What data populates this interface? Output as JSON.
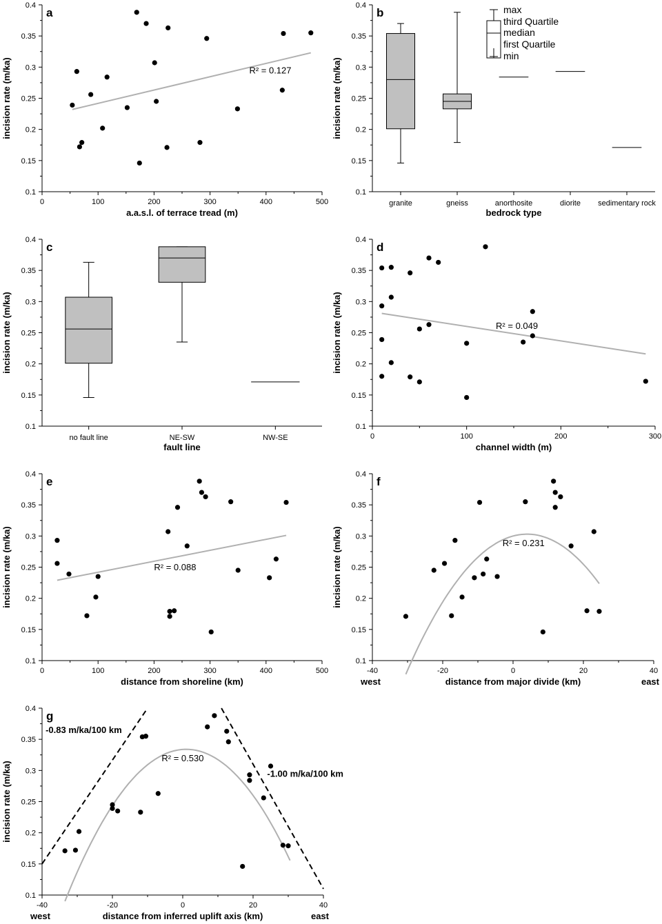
{
  "chart_data": [
    {
      "id": "a",
      "type": "scatter",
      "label": "a",
      "xlabel": "a.a.s.l. of terrace tread (m)",
      "ylabel": "incision rate (m/ka)",
      "xlim": [
        0,
        500
      ],
      "ylim": [
        0.1,
        0.4
      ],
      "xticks": [
        0,
        100,
        200,
        300,
        400,
        500
      ],
      "xtick_labels": [
        "0",
        "100",
        "200",
        "300",
        "400",
        "500"
      ],
      "yticks": [
        0.1,
        0.15,
        0.2,
        0.25,
        0.3,
        0.35,
        0.4
      ],
      "ytick_labels": [
        "0.1",
        "0.15",
        "0.2",
        "0.25",
        "0.3",
        "0.35",
        "0.4"
      ],
      "points": [
        [
          54,
          0.239
        ],
        [
          62,
          0.293
        ],
        [
          67,
          0.172
        ],
        [
          71,
          0.179
        ],
        [
          87,
          0.256
        ],
        [
          108,
          0.202
        ],
        [
          116,
          0.284
        ],
        [
          152,
          0.235
        ],
        [
          169,
          0.388
        ],
        [
          174,
          0.146
        ],
        [
          186,
          0.37
        ],
        [
          201,
          0.307
        ],
        [
          204,
          0.245
        ],
        [
          223,
          0.171
        ],
        [
          225,
          0.363
        ],
        [
          282,
          0.179
        ],
        [
          294,
          0.346
        ],
        [
          349,
          0.233
        ],
        [
          429,
          0.263
        ],
        [
          431,
          0.354
        ],
        [
          480,
          0.355
        ]
      ],
      "fit": {
        "kind": "linear",
        "x": [
          54,
          480
        ],
        "y": [
          0.232,
          0.323
        ]
      },
      "r2_text": "R² = 0.127",
      "r2_at": [
        370,
        0.29
      ]
    },
    {
      "id": "b",
      "type": "box",
      "label": "b",
      "xlabel": "bedrock type",
      "ylabel": "incision rate (m/ka)",
      "ylim": [
        0.1,
        0.4
      ],
      "yticks": [
        0.1,
        0.15,
        0.2,
        0.25,
        0.3,
        0.35,
        0.4
      ],
      "ytick_labels": [
        "0.1",
        "0.15",
        "0.2",
        "0.25",
        "0.3",
        "0.35",
        "0.4"
      ],
      "categories": [
        "granite",
        "gneiss",
        "anorthosite",
        "diorite",
        "sedimentary rock"
      ],
      "boxes": [
        {
          "min": 0.146,
          "q1": 0.201,
          "median": 0.28,
          "q3": 0.354,
          "max": 0.37
        },
        {
          "min": 0.179,
          "q1": 0.233,
          "median": 0.245,
          "q3": 0.257,
          "max": 0.388
        },
        {
          "single": 0.284
        },
        {
          "single": 0.293
        },
        {
          "single": 0.171
        }
      ],
      "legend": [
        "max",
        "third Quartile",
        "median",
        "first Quartile",
        "min"
      ]
    },
    {
      "id": "c",
      "type": "box",
      "label": "c",
      "xlabel": "fault line",
      "ylabel": "incision rate (m/ka)",
      "ylim": [
        0.1,
        0.4
      ],
      "yticks": [
        0.1,
        0.15,
        0.2,
        0.25,
        0.3,
        0.35,
        0.4
      ],
      "ytick_labels": [
        "0.1",
        "0.15",
        "0.2",
        "0.25",
        "0.3",
        "0.35",
        "0.4"
      ],
      "categories": [
        "no fault line",
        "NE-SW",
        "NW-SE"
      ],
      "boxes": [
        {
          "min": 0.146,
          "q1": 0.201,
          "median": 0.256,
          "q3": 0.307,
          "max": 0.363
        },
        {
          "min": 0.235,
          "q1": 0.331,
          "median": 0.37,
          "q3": 0.388,
          "max": 0.388
        },
        {
          "single": 0.171
        }
      ]
    },
    {
      "id": "d",
      "type": "scatter",
      "label": "d",
      "xlabel": "channel width (m)",
      "ylabel": "incision rate (m/ka)",
      "xlim": [
        0,
        300
      ],
      "ylim": [
        0.1,
        0.4
      ],
      "xticks": [
        0,
        100,
        200,
        300
      ],
      "xtick_labels": [
        "0",
        "100",
        "200",
        "300"
      ],
      "yticks": [
        0.1,
        0.15,
        0.2,
        0.25,
        0.3,
        0.35,
        0.4
      ],
      "ytick_labels": [
        "0.1",
        "0.15",
        "0.2",
        "0.25",
        "0.3",
        "0.35",
        "0.4"
      ],
      "points": [
        [
          10,
          0.354
        ],
        [
          10,
          0.293
        ],
        [
          10,
          0.239
        ],
        [
          10,
          0.18
        ],
        [
          20,
          0.355
        ],
        [
          20,
          0.307
        ],
        [
          20,
          0.202
        ],
        [
          40,
          0.346
        ],
        [
          40,
          0.179
        ],
        [
          50,
          0.256
        ],
        [
          50,
          0.171
        ],
        [
          60,
          0.37
        ],
        [
          60,
          0.263
        ],
        [
          70,
          0.363
        ],
        [
          100,
          0.233
        ],
        [
          100,
          0.146
        ],
        [
          120,
          0.388
        ],
        [
          160,
          0.235
        ],
        [
          170,
          0.284
        ],
        [
          170,
          0.245
        ],
        [
          290,
          0.172
        ]
      ],
      "fit": {
        "kind": "linear",
        "x": [
          10,
          290
        ],
        "y": [
          0.281,
          0.216
        ]
      },
      "r2_text": "R² = 0.049",
      "r2_at": [
        131,
        0.256
      ]
    },
    {
      "id": "e",
      "type": "scatter",
      "label": "e",
      "xlabel": "distance from shoreline (km)",
      "ylabel": "incision rate (m/ka)",
      "xlim": [
        0,
        500
      ],
      "ylim": [
        0.1,
        0.4
      ],
      "xticks": [
        0,
        100,
        200,
        300,
        400,
        500
      ],
      "xtick_labels": [
        "0",
        "100",
        "200",
        "300",
        "400",
        "500"
      ],
      "yticks": [
        0.1,
        0.15,
        0.2,
        0.25,
        0.3,
        0.35,
        0.4
      ],
      "ytick_labels": [
        "0.1",
        "0.15",
        "0.2",
        "0.25",
        "0.3",
        "0.35",
        "0.4"
      ],
      "points": [
        [
          27,
          0.293
        ],
        [
          27,
          0.256
        ],
        [
          48,
          0.239
        ],
        [
          80,
          0.172
        ],
        [
          96,
          0.202
        ],
        [
          100,
          0.235
        ],
        [
          225,
          0.307
        ],
        [
          228,
          0.179
        ],
        [
          228,
          0.171
        ],
        [
          236,
          0.18
        ],
        [
          242,
          0.346
        ],
        [
          259,
          0.284
        ],
        [
          281,
          0.388
        ],
        [
          285,
          0.37
        ],
        [
          292,
          0.363
        ],
        [
          302,
          0.146
        ],
        [
          337,
          0.355
        ],
        [
          350,
          0.245
        ],
        [
          406,
          0.233
        ],
        [
          418,
          0.263
        ],
        [
          436,
          0.354
        ]
      ],
      "fit": {
        "kind": "linear",
        "x": [
          27,
          436
        ],
        "y": [
          0.229,
          0.301
        ]
      },
      "r2_text": "R² = 0.088",
      "r2_at": [
        200,
        0.245
      ]
    },
    {
      "id": "f",
      "type": "scatter",
      "label": "f",
      "xlabel": "distance from major divide (km)",
      "ylabel": "incision rate (m/ka)",
      "xlim": [
        -40,
        40
      ],
      "ylim": [
        0.1,
        0.4
      ],
      "xticks": [
        -40,
        -20,
        0,
        20,
        40
      ],
      "xtick_labels": [
        "-40",
        "-20",
        "0",
        "20",
        "40"
      ],
      "yticks": [
        0.1,
        0.15,
        0.2,
        0.25,
        0.3,
        0.35,
        0.4
      ],
      "ytick_labels": [
        "0.1",
        "0.15",
        "0.2",
        "0.25",
        "0.3",
        "0.35",
        "0.4"
      ],
      "side_left": "west",
      "side_right": "east",
      "points": [
        [
          -30.5,
          0.171
        ],
        [
          -22.5,
          0.245
        ],
        [
          -19.5,
          0.256
        ],
        [
          -17.5,
          0.172
        ],
        [
          -16.5,
          0.293
        ],
        [
          -14.5,
          0.202
        ],
        [
          -11,
          0.233
        ],
        [
          -9.5,
          0.354
        ],
        [
          -8.5,
          0.239
        ],
        [
          -7.5,
          0.263
        ],
        [
          -4.5,
          0.235
        ],
        [
          3.5,
          0.355
        ],
        [
          8.5,
          0.146
        ],
        [
          11.5,
          0.388
        ],
        [
          12,
          0.37
        ],
        [
          12,
          0.346
        ],
        [
          13.5,
          0.363
        ],
        [
          16.5,
          0.284
        ],
        [
          21,
          0.18
        ],
        [
          23,
          0.307
        ],
        [
          24.5,
          0.179
        ]
      ],
      "fit": {
        "kind": "quadratic",
        "vertex": [
          4,
          0.303
        ],
        "a": -0.000189,
        "xrange": [
          -30.5,
          24.5
        ]
      },
      "r2_text": "R² = 0.231",
      "r2_at": [
        -3,
        0.284
      ]
    },
    {
      "id": "g",
      "type": "scatter",
      "label": "g",
      "xlabel": "distance from inferred uplift axis (km)",
      "ylabel": "incision rate (m/ka)",
      "xlim": [
        -40,
        40
      ],
      "ylim": [
        0.1,
        0.4
      ],
      "xticks": [
        -40,
        -20,
        0,
        20,
        40
      ],
      "xtick_labels": [
        "-40",
        "-20",
        "0",
        "20",
        "40"
      ],
      "yticks": [
        0.1,
        0.15,
        0.2,
        0.25,
        0.3,
        0.35,
        0.4
      ],
      "ytick_labels": [
        "0.1",
        "0.15",
        "0.2",
        "0.25",
        "0.3",
        "0.35",
        "0.4"
      ],
      "side_left": "west",
      "side_right": "east",
      "points": [
        [
          -33.5,
          0.171
        ],
        [
          -30.5,
          0.172
        ],
        [
          -29.5,
          0.202
        ],
        [
          -20,
          0.245
        ],
        [
          -20,
          0.239
        ],
        [
          -18.5,
          0.235
        ],
        [
          -12,
          0.233
        ],
        [
          -11.5,
          0.354
        ],
        [
          -10.5,
          0.355
        ],
        [
          -7,
          0.263
        ],
        [
          7,
          0.37
        ],
        [
          9,
          0.388
        ],
        [
          12.5,
          0.363
        ],
        [
          13,
          0.346
        ],
        [
          17,
          0.146
        ],
        [
          19,
          0.293
        ],
        [
          19,
          0.284
        ],
        [
          23,
          0.256
        ],
        [
          25,
          0.307
        ],
        [
          28.5,
          0.18
        ],
        [
          30,
          0.179
        ]
      ],
      "fit": {
        "kind": "quadratic",
        "vertex": [
          1,
          0.334
        ],
        "a": -0.000205,
        "xrange": [
          -33.5,
          30.5
        ]
      },
      "r2_text": "R² = 0.530",
      "r2_at": [
        -6,
        0.315
      ],
      "dashed": [
        {
          "x": [
            -40,
            -10
          ],
          "y": [
            0.15,
            0.4
          ]
        },
        {
          "x": [
            11,
            40
          ],
          "y": [
            0.4,
            0.11
          ]
        }
      ],
      "slope_left": "-0.83 m/ka/100 km",
      "slope_left_at": [
        -39,
        0.36
      ],
      "slope_right": "-1.00 m/ka/100 km",
      "slope_right_at": [
        24,
        0.29
      ]
    }
  ]
}
